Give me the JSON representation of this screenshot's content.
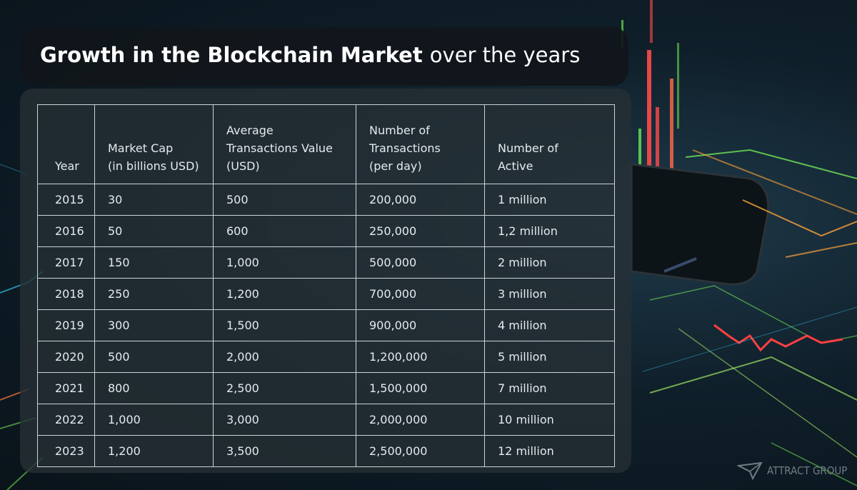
{
  "title": {
    "bold": "Growth in the Blockchain Market",
    "normal": "over the years"
  },
  "table": {
    "headers": [
      [
        "Year"
      ],
      [
        "Market Cap",
        "(in billions USD)"
      ],
      [
        "Average",
        "Transactions Value",
        "(USD)"
      ],
      [
        "Number of",
        "Transactions",
        "(per day)"
      ],
      [
        "Number of",
        "Active"
      ]
    ],
    "rows": [
      [
        "2015",
        "30",
        "500",
        "200,000",
        "1 million"
      ],
      [
        "2016",
        "50",
        "600",
        "250,000",
        "1,2 million"
      ],
      [
        "2017",
        "150",
        "1,000",
        "500,000",
        "2 million"
      ],
      [
        "2018",
        "250",
        "1,200",
        "700,000",
        "3 million"
      ],
      [
        "2019",
        "300",
        "1,500",
        "900,000",
        "4 million"
      ],
      [
        "2020",
        "500",
        "2,000",
        "1,200,000",
        "5 million"
      ],
      [
        "2021",
        "800",
        "2,500",
        "1,500,000",
        "7 million"
      ],
      [
        "2022",
        "1,000",
        "3,000",
        "2,000,000",
        "10 million"
      ],
      [
        "2023",
        "1,200",
        "3,500",
        "2,500,000",
        "12 million"
      ]
    ]
  },
  "logo": {
    "text": "ATTRACT GROUP"
  },
  "colors": {
    "neon_red": "#ff3b3b",
    "neon_green": "#7dff5a",
    "neon_orange": "#ffa23a",
    "neon_blue": "#3ad6ff"
  }
}
